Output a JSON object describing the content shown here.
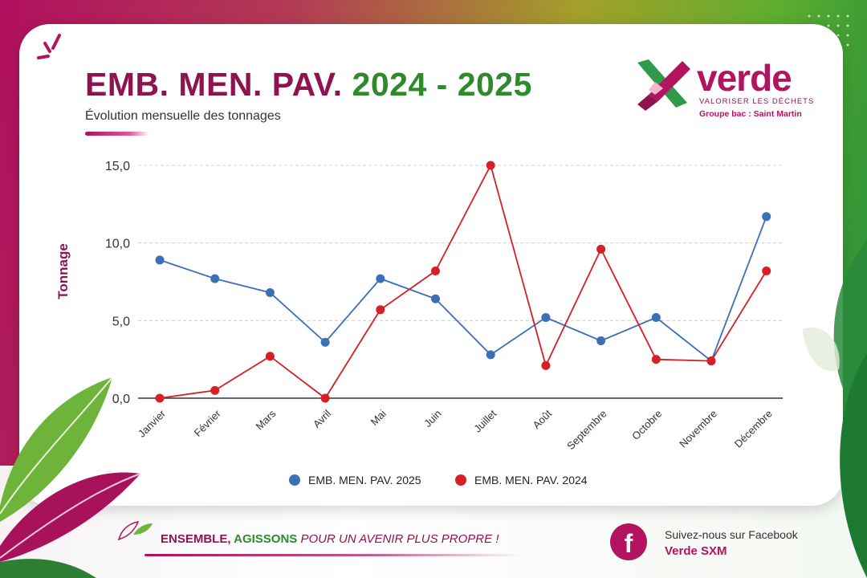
{
  "header": {
    "title_main": "EMB. MEN. PAV.",
    "title_years": "2024 - 2025",
    "subtitle": "Évolution mensuelle des tonnages"
  },
  "brand": {
    "name": "verde",
    "tagline": "VALORISER LES DÉCHETS",
    "group": "Groupe bac : Saint Martin"
  },
  "footer": {
    "slogan_part1": "ENSEMBLE, ",
    "slogan_part2": "AGISSONS",
    "slogan_part3": " POUR UN AVENIR PLUS PROPRE !",
    "facebook_prompt": "Suivez-nous sur Facebook",
    "facebook_page": "Verde SXM",
    "facebook_glyph": "f"
  },
  "colors": {
    "series_2025": "#3b6fb6",
    "series_2024": "#d61f26",
    "brand_magenta": "#b3145f",
    "brand_green": "#2f8a2b"
  },
  "chart_data": {
    "type": "line",
    "ylabel": "Tonnage",
    "ylim": [
      0,
      15
    ],
    "yticks": [
      "0,0",
      "5,0",
      "10,0",
      "15,0"
    ],
    "ytick_values": [
      0,
      5,
      10,
      15
    ],
    "grid": true,
    "legend_position": "bottom",
    "categories": [
      "Janvier",
      "Février",
      "Mars",
      "Avril",
      "Mai",
      "Juin",
      "Juillet",
      "Août",
      "Septembre",
      "Octobre",
      "Novembre",
      "Décembre"
    ],
    "series": [
      {
        "name": "EMB. MEN. PAV. 2025",
        "values": [
          8.9,
          7.7,
          6.8,
          3.6,
          7.7,
          6.4,
          2.8,
          5.2,
          3.7,
          5.2,
          2.4,
          11.7
        ]
      },
      {
        "name": "EMB. MEN. PAV. 2024",
        "values": [
          0.0,
          0.5,
          2.7,
          0.0,
          5.7,
          8.2,
          15.0,
          2.1,
          9.6,
          2.5,
          2.4,
          8.2
        ]
      }
    ]
  }
}
